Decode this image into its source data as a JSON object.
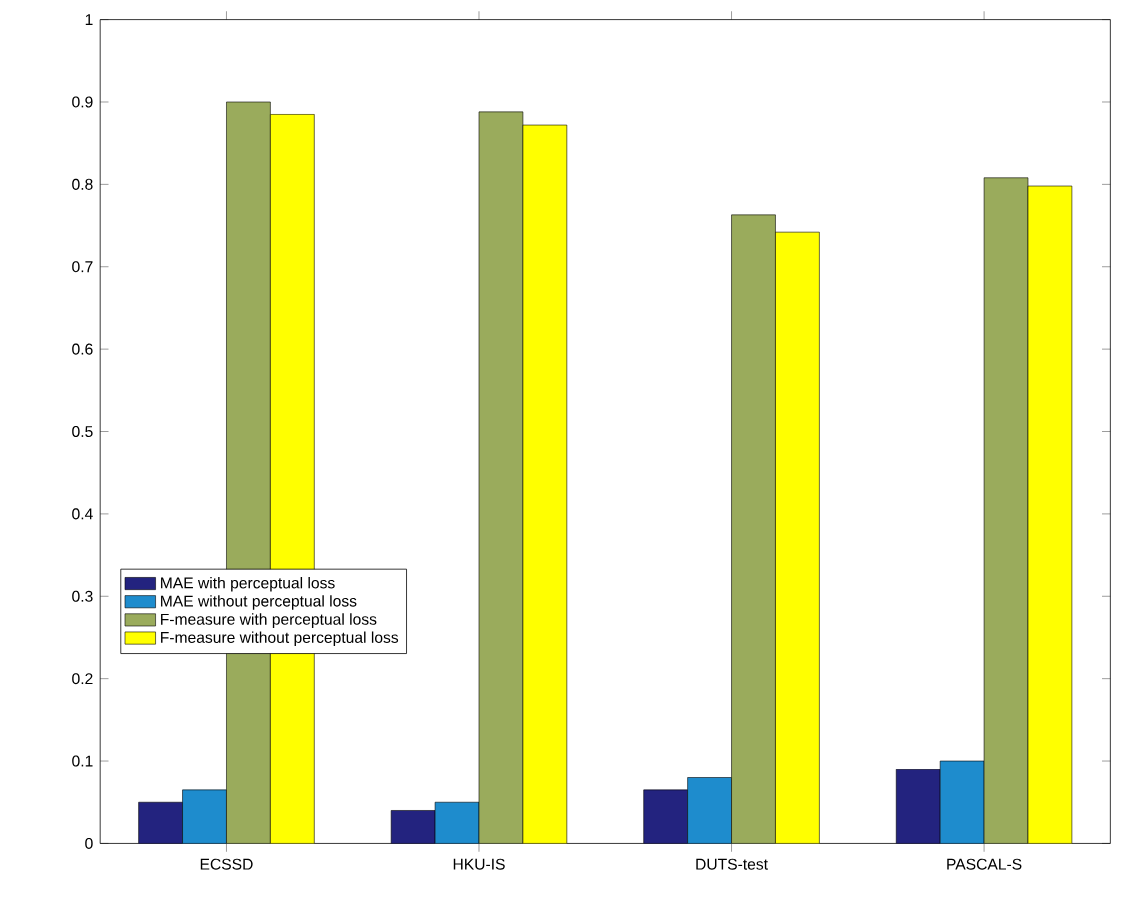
{
  "chart_data": {
    "type": "bar",
    "categories": [
      "ECSSD",
      "HKU-IS",
      "DUTS-test",
      "PASCAL-S"
    ],
    "series": [
      {
        "name": "MAE with perceptual loss",
        "color": "#23237f",
        "values": [
          0.05,
          0.04,
          0.065,
          0.09
        ]
      },
      {
        "name": "MAE without perceptual loss",
        "color": "#1e8ccd",
        "values": [
          0.065,
          0.05,
          0.08,
          0.1
        ]
      },
      {
        "name": "F-measure with perceptual loss",
        "color": "#9aab5c",
        "values": [
          0.9,
          0.888,
          0.763,
          0.808
        ]
      },
      {
        "name": "F-measure without perceptual loss",
        "color": "#ffff00",
        "values": [
          0.885,
          0.872,
          0.742,
          0.798
        ]
      }
    ],
    "ylim": [
      0,
      1
    ],
    "yticks": [
      0,
      0.1,
      0.2,
      0.3,
      0.4,
      0.5,
      0.6,
      0.7,
      0.8,
      0.9,
      1
    ],
    "legend": "bottom left"
  }
}
